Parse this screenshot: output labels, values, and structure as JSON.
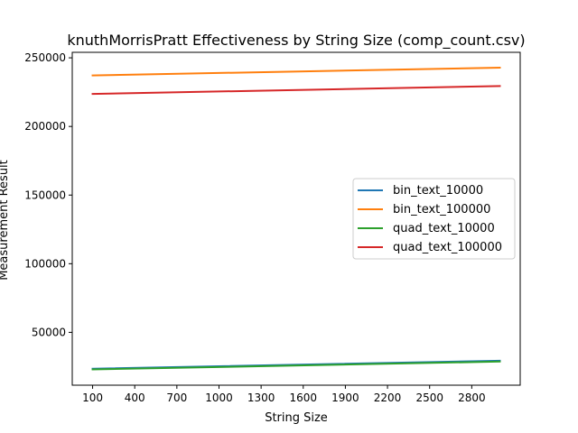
{
  "chart_data": {
    "type": "line",
    "title": "knuthMorrisPratt Effectiveness by String Size (comp_count.csv)",
    "xlabel": "String Size",
    "ylabel": "Measurement Result",
    "x": [
      100,
      3000
    ],
    "xticks": [
      "100",
      "400",
      "700",
      "1000",
      "1300",
      "1600",
      "1900",
      "2200",
      "2500",
      "2800"
    ],
    "yticks": [
      "50000",
      "100000",
      "150000",
      "200000",
      "250000"
    ],
    "xlim": [
      -45,
      3145
    ],
    "ylim": [
      11500,
      254000
    ],
    "series": [
      {
        "name": "bin_text_10000",
        "color": "#1f77b4",
        "values": [
          23500,
          29300
        ]
      },
      {
        "name": "bin_text_100000",
        "color": "#ff7f0e",
        "values": [
          237200,
          242800
        ]
      },
      {
        "name": "quad_text_10000",
        "color": "#2ca02c",
        "values": [
          23000,
          28700
        ]
      },
      {
        "name": "quad_text_100000",
        "color": "#d62728",
        "values": [
          223700,
          229400
        ]
      }
    ],
    "legend": "center-right",
    "grid": false
  }
}
